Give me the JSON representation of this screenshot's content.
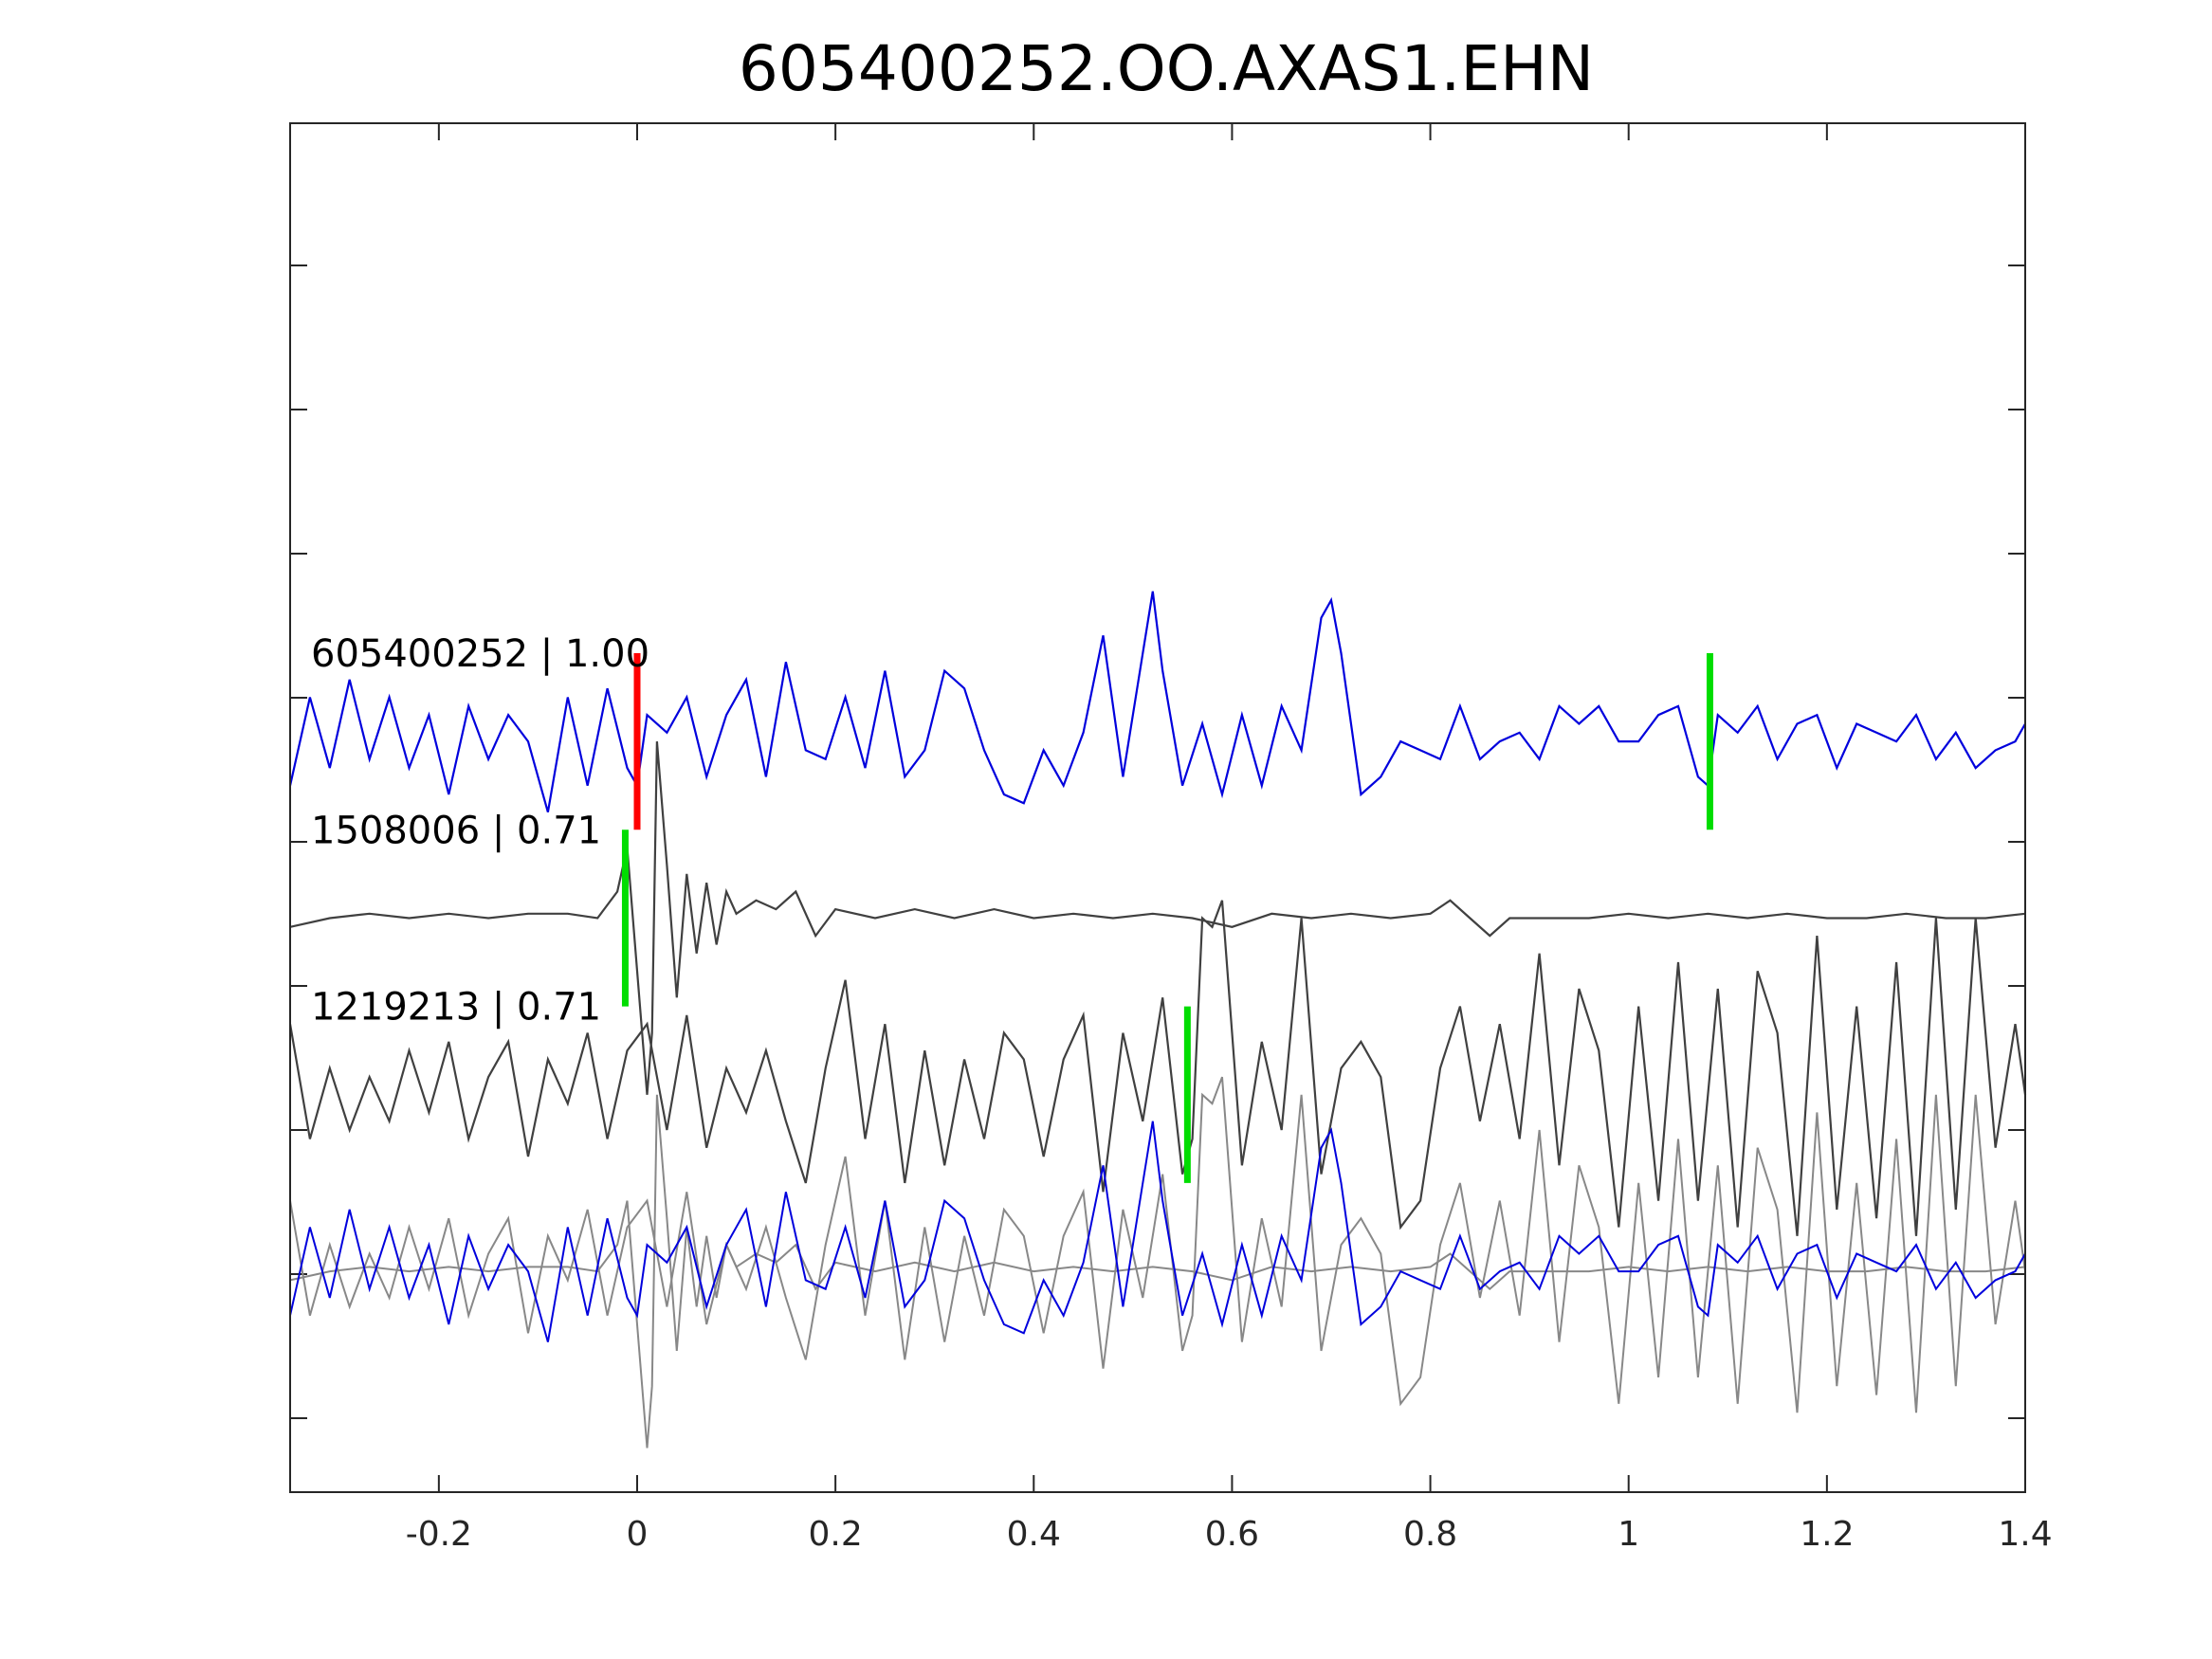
{
  "chart_data": {
    "type": "line",
    "title": "605400252.OO.AXAS1.EHN",
    "xlabel": "",
    "ylabel": "",
    "xlim": [
      -0.35,
      1.4
    ],
    "x_ticks": [
      {
        "value": -0.2,
        "label": "-0.2"
      },
      {
        "value": 0,
        "label": "0"
      },
      {
        "value": 0.2,
        "label": "0.2"
      },
      {
        "value": 0.4,
        "label": "0.4"
      },
      {
        "value": 0.6,
        "label": "0.6"
      },
      {
        "value": 0.8,
        "label": "0.8"
      },
      {
        "value": 1,
        "label": "1"
      },
      {
        "value": 1.2,
        "label": "1.2"
      },
      {
        "value": 1.4,
        "label": "1.4"
      }
    ],
    "y_tick_count": 9,
    "traces": [
      {
        "label": "605400252 | 1.00",
        "color": "#0000dd",
        "offset": 0,
        "x": [
          -0.35,
          -0.33,
          -0.31,
          -0.29,
          -0.27,
          -0.25,
          -0.23,
          -0.21,
          -0.19,
          -0.17,
          -0.15,
          -0.13,
          -0.11,
          -0.09,
          -0.07,
          -0.05,
          -0.03,
          -0.01,
          0.0,
          0.01,
          0.03,
          0.05,
          0.07,
          0.09,
          0.11,
          0.13,
          0.15,
          0.17,
          0.19,
          0.21,
          0.23,
          0.25,
          0.27,
          0.29,
          0.31,
          0.33,
          0.35,
          0.37,
          0.39,
          0.41,
          0.43,
          0.45,
          0.47,
          0.49,
          0.51,
          0.52,
          0.53,
          0.55,
          0.57,
          0.59,
          0.61,
          0.63,
          0.65,
          0.67,
          0.69,
          0.7,
          0.71,
          0.73,
          0.75,
          0.77,
          0.79,
          0.81,
          0.83,
          0.85,
          0.87,
          0.89,
          0.91,
          0.93,
          0.95,
          0.97,
          0.99,
          1.01,
          1.03,
          1.05,
          1.07,
          1.08,
          1.09,
          1.11,
          1.13,
          1.15,
          1.17,
          1.19,
          1.21,
          1.23,
          1.25,
          1.27,
          1.29,
          1.31,
          1.33,
          1.35,
          1.37,
          1.39,
          1.4
        ],
        "y": [
          -0.5,
          0.5,
          -0.3,
          0.7,
          -0.2,
          0.5,
          -0.3,
          0.3,
          -0.6,
          0.4,
          -0.2,
          0.3,
          0.0,
          -0.8,
          0.5,
          -0.5,
          0.6,
          -0.3,
          -0.5,
          0.3,
          0.1,
          0.5,
          -0.4,
          0.3,
          0.7,
          -0.4,
          0.9,
          -0.1,
          -0.2,
          0.5,
          -0.3,
          0.8,
          -0.4,
          -0.1,
          0.8,
          0.6,
          -0.1,
          -0.6,
          -0.7,
          -0.1,
          -0.5,
          0.1,
          1.2,
          -0.4,
          1.0,
          1.7,
          0.8,
          -0.5,
          0.2,
          -0.6,
          0.3,
          -0.5,
          0.4,
          -0.1,
          1.4,
          1.6,
          1.0,
          -0.6,
          -0.4,
          0.0,
          -0.1,
          -0.2,
          0.4,
          -0.2,
          0.0,
          0.1,
          -0.2,
          0.4,
          0.2,
          0.4,
          0.0,
          0.0,
          0.3,
          0.4,
          -0.4,
          -0.5,
          0.3,
          0.1,
          0.4,
          -0.2,
          0.2,
          0.3,
          -0.3,
          0.2,
          0.1,
          0.0,
          0.3,
          -0.2,
          0.1,
          -0.3,
          -0.1,
          0.0,
          0.2
        ]
      },
      {
        "label": "1508006 | 0.71",
        "color": "#404040",
        "offset": -2,
        "x": [
          -0.35,
          -0.31,
          -0.27,
          -0.23,
          -0.19,
          -0.15,
          -0.11,
          -0.07,
          -0.04,
          -0.02,
          -0.01,
          0.0,
          0.01,
          0.015,
          0.02,
          0.03,
          0.04,
          0.05,
          0.06,
          0.07,
          0.08,
          0.09,
          0.1,
          0.12,
          0.14,
          0.16,
          0.18,
          0.2,
          0.24,
          0.28,
          0.32,
          0.36,
          0.4,
          0.44,
          0.48,
          0.52,
          0.56,
          0.6,
          0.64,
          0.68,
          0.72,
          0.76,
          0.8,
          0.82,
          0.84,
          0.86,
          0.88,
          0.92,
          0.96,
          1.0,
          1.04,
          1.08,
          1.12,
          1.16,
          1.2,
          1.24,
          1.28,
          1.32,
          1.36,
          1.4
        ],
        "y": [
          -0.1,
          0.0,
          0.05,
          0.0,
          0.05,
          0.0,
          0.05,
          0.05,
          0.0,
          0.3,
          0.8,
          -0.6,
          -2.0,
          -1.3,
          2.0,
          0.6,
          -0.9,
          0.5,
          -0.4,
          0.4,
          -0.3,
          0.3,
          0.05,
          0.2,
          0.1,
          0.3,
          -0.2,
          0.1,
          0.0,
          0.1,
          0.0,
          0.1,
          0.0,
          0.05,
          0.0,
          0.05,
          0.0,
          -0.1,
          0.05,
          0.0,
          0.05,
          0.0,
          0.05,
          0.2,
          0.0,
          -0.2,
          0.0,
          0.0,
          0.0,
          0.05,
          0.0,
          0.05,
          0.0,
          0.05,
          0.0,
          0.0,
          0.05,
          0.0,
          0.0,
          0.05
        ]
      },
      {
        "label": "1219213 | 0.71",
        "color": "#404040",
        "offset": -4,
        "x": [
          -0.35,
          -0.33,
          -0.31,
          -0.29,
          -0.27,
          -0.25,
          -0.23,
          -0.21,
          -0.19,
          -0.17,
          -0.15,
          -0.13,
          -0.11,
          -0.09,
          -0.07,
          -0.05,
          -0.03,
          -0.01,
          0.01,
          0.03,
          0.05,
          0.07,
          0.09,
          0.11,
          0.13,
          0.15,
          0.17,
          0.19,
          0.21,
          0.23,
          0.25,
          0.27,
          0.29,
          0.31,
          0.33,
          0.35,
          0.37,
          0.39,
          0.41,
          0.43,
          0.45,
          0.47,
          0.49,
          0.51,
          0.53,
          0.55,
          0.56,
          0.57,
          0.58,
          0.59,
          0.61,
          0.63,
          0.65,
          0.67,
          0.69,
          0.71,
          0.73,
          0.75,
          0.77,
          0.79,
          0.81,
          0.83,
          0.85,
          0.87,
          0.89,
          0.91,
          0.93,
          0.95,
          0.97,
          0.99,
          1.01,
          1.03,
          1.05,
          1.07,
          1.09,
          1.11,
          1.13,
          1.15,
          1.17,
          1.19,
          1.21,
          1.23,
          1.25,
          1.27,
          1.29,
          1.31,
          1.33,
          1.35,
          1.37,
          1.39,
          1.4
        ],
        "y": [
          0.8,
          -0.5,
          0.3,
          -0.4,
          0.2,
          -0.3,
          0.5,
          -0.2,
          0.6,
          -0.5,
          0.2,
          0.6,
          -0.7,
          0.4,
          -0.1,
          0.7,
          -0.5,
          0.5,
          0.8,
          -0.4,
          0.9,
          -0.6,
          0.3,
          -0.2,
          0.5,
          -0.3,
          -1.0,
          0.3,
          1.3,
          -0.5,
          0.8,
          -1.0,
          0.5,
          -0.8,
          0.4,
          -0.5,
          0.7,
          0.4,
          -0.7,
          0.4,
          0.9,
          -1.1,
          0.7,
          -0.3,
          1.1,
          -0.9,
          -0.5,
          2.0,
          1.9,
          2.2,
          -0.8,
          0.6,
          -0.4,
          2.0,
          -0.9,
          0.3,
          0.6,
          0.2,
          -1.5,
          -1.2,
          0.3,
          1.0,
          -0.3,
          0.8,
          -0.5,
          1.6,
          -0.8,
          1.2,
          0.5,
          -1.5,
          1.0,
          -1.2,
          1.5,
          -1.2,
          1.2,
          -1.5,
          1.4,
          0.7,
          -1.6,
          1.8,
          -1.3,
          1.0,
          -1.4,
          1.5,
          -1.6,
          2.0,
          -1.3,
          2.0,
          -0.6,
          0.8,
          0.0
        ]
      }
    ],
    "overlay": {
      "offset": -6,
      "traces": [
        {
          "ref": 0,
          "color": "#0000dd"
        },
        {
          "ref": 1,
          "color": "#888888"
        },
        {
          "ref": 2,
          "color": "#888888"
        }
      ]
    },
    "picks": [
      {
        "trace": 0,
        "x": 0.0,
        "color": "#ff0000"
      },
      {
        "trace": 0,
        "x": 1.082,
        "color": "#00dd00"
      },
      {
        "trace": 1,
        "x": -0.012,
        "color": "#00dd00"
      },
      {
        "trace": 2,
        "x": 0.555,
        "color": "#00dd00"
      }
    ]
  }
}
